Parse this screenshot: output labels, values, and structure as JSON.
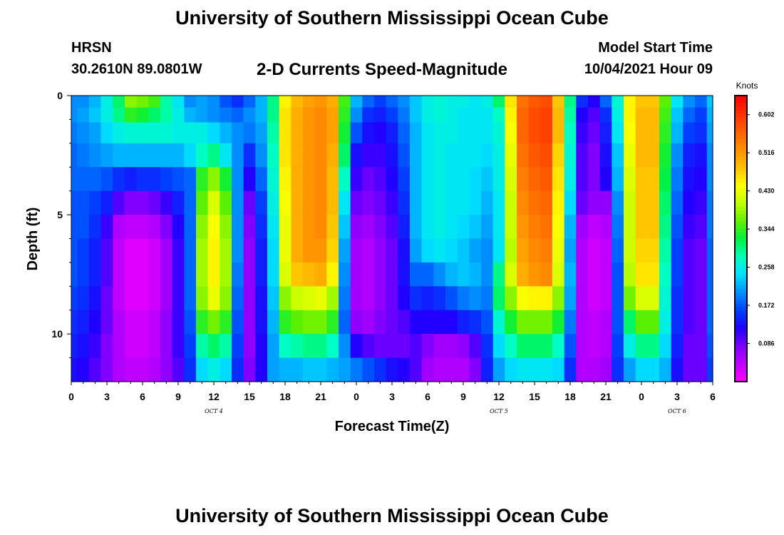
{
  "header": {
    "main_title": "University of Southern Mississippi Ocean Cube",
    "station": "HRSN",
    "coordinates": "30.2610N  89.0801W",
    "chart_title": "2-D Currents Speed-Magnitude",
    "model_start_label": "Model Start Time",
    "model_start_time": "10/04/2021 Hour 09"
  },
  "footer": {
    "title": "University of Southern Mississippi Ocean Cube"
  },
  "chart_data": {
    "type": "heatmap",
    "title": "2-D Currents Speed-Magnitude",
    "xlabel": "Forecast Time(Z)",
    "ylabel": "Depth (ft)",
    "x_hours": [
      0,
      3,
      6,
      9,
      12,
      15,
      18,
      21,
      24,
      27,
      30,
      33,
      36,
      39,
      42,
      45,
      48,
      51,
      54
    ],
    "x_tick_labels": [
      "0",
      "3",
      "6",
      "9",
      "12",
      "15",
      "18",
      "21",
      "0",
      "3",
      "6",
      "9",
      "12",
      "15",
      "18",
      "21",
      "0",
      "3",
      "6"
    ],
    "day_labels": [
      {
        "label": "OCT 4",
        "hour": 12
      },
      {
        "label": "OCT 5",
        "hour": 36
      },
      {
        "label": "OCT 6",
        "hour": 51
      }
    ],
    "y_ticks": [
      0,
      5,
      10
    ],
    "ylim": [
      0,
      12
    ],
    "colorbar": {
      "label": "Knots",
      "min": 0.0,
      "max": 0.645,
      "ticks": [
        "0.086",
        "0.172",
        "0.258",
        "0.344",
        "0.430",
        "0.516",
        "0.602"
      ],
      "colors": [
        "#ff00ff",
        "#c000ff",
        "#8000ff",
        "#2000ff",
        "#0040ff",
        "#0090ff",
        "#00e0ff",
        "#00ffc0",
        "#00f040",
        "#60f000",
        "#c0ff00",
        "#ffff00",
        "#ffc000",
        "#ff9000",
        "#ff6000",
        "#ff3000",
        "#ff0000"
      ]
    },
    "depth_bins_ft": [
      0.25,
      0.75,
      1.5,
      2.5,
      3.5,
      4.5,
      5.5,
      6.5,
      7.5,
      8.5,
      9.5,
      10.5,
      11.5
    ],
    "hours": [
      0,
      1,
      2,
      3,
      4,
      5,
      6,
      7,
      8,
      9,
      10,
      11,
      12,
      13,
      14,
      15,
      16,
      17,
      18,
      19,
      20,
      21,
      22,
      23,
      24,
      25,
      26,
      27,
      28,
      29,
      30,
      31,
      32,
      33,
      34,
      35,
      36,
      37,
      38,
      39,
      40,
      41,
      42,
      43,
      44,
      45,
      46,
      47,
      48,
      49,
      50,
      51,
      52,
      53,
      54
    ],
    "speed_knots": [
      [
        0.2,
        0.2,
        0.22,
        0.26,
        0.31,
        0.38,
        0.37,
        0.35,
        0.29,
        0.25,
        0.2,
        0.21,
        0.2,
        0.17,
        0.15,
        0.18,
        0.22,
        0.3,
        0.45,
        0.49,
        0.51,
        0.52,
        0.5,
        0.35,
        0.22,
        0.18,
        0.16,
        0.18,
        0.2,
        0.23,
        0.26,
        0.27,
        0.26,
        0.26,
        0.25,
        0.26,
        0.31,
        0.46,
        0.55,
        0.57,
        0.58,
        0.48,
        0.3,
        0.15,
        0.12,
        0.18,
        0.27,
        0.45,
        0.48,
        0.48,
        0.36,
        0.25,
        0.2,
        0.18,
        0.23
      ],
      [
        0.2,
        0.21,
        0.23,
        0.26,
        0.3,
        0.34,
        0.33,
        0.31,
        0.29,
        0.26,
        0.22,
        0.21,
        0.2,
        0.19,
        0.18,
        0.2,
        0.22,
        0.3,
        0.46,
        0.5,
        0.52,
        0.53,
        0.51,
        0.34,
        0.2,
        0.15,
        0.14,
        0.16,
        0.19,
        0.23,
        0.26,
        0.27,
        0.26,
        0.25,
        0.25,
        0.25,
        0.28,
        0.45,
        0.56,
        0.58,
        0.59,
        0.49,
        0.29,
        0.12,
        0.1,
        0.15,
        0.26,
        0.45,
        0.49,
        0.49,
        0.35,
        0.23,
        0.18,
        0.16,
        0.22
      ],
      [
        0.19,
        0.2,
        0.21,
        0.24,
        0.26,
        0.27,
        0.27,
        0.27,
        0.27,
        0.26,
        0.26,
        0.26,
        0.24,
        0.22,
        0.2,
        0.19,
        0.21,
        0.29,
        0.46,
        0.5,
        0.52,
        0.53,
        0.51,
        0.33,
        0.17,
        0.13,
        0.12,
        0.14,
        0.18,
        0.22,
        0.25,
        0.26,
        0.26,
        0.25,
        0.25,
        0.25,
        0.27,
        0.44,
        0.56,
        0.58,
        0.59,
        0.49,
        0.28,
        0.11,
        0.09,
        0.14,
        0.25,
        0.44,
        0.49,
        0.49,
        0.34,
        0.22,
        0.16,
        0.15,
        0.21
      ],
      [
        0.18,
        0.19,
        0.2,
        0.21,
        0.22,
        0.22,
        0.22,
        0.22,
        0.22,
        0.22,
        0.24,
        0.28,
        0.3,
        0.25,
        0.2,
        0.15,
        0.2,
        0.28,
        0.46,
        0.5,
        0.52,
        0.53,
        0.5,
        0.31,
        0.13,
        0.11,
        0.11,
        0.13,
        0.17,
        0.22,
        0.25,
        0.26,
        0.25,
        0.25,
        0.25,
        0.24,
        0.26,
        0.43,
        0.55,
        0.57,
        0.58,
        0.47,
        0.27,
        0.1,
        0.08,
        0.13,
        0.23,
        0.43,
        0.49,
        0.49,
        0.33,
        0.2,
        0.14,
        0.13,
        0.2
      ],
      [
        0.18,
        0.18,
        0.18,
        0.17,
        0.15,
        0.14,
        0.15,
        0.15,
        0.16,
        0.17,
        0.18,
        0.34,
        0.38,
        0.33,
        0.2,
        0.12,
        0.18,
        0.27,
        0.45,
        0.5,
        0.52,
        0.53,
        0.49,
        0.28,
        0.11,
        0.09,
        0.1,
        0.12,
        0.16,
        0.22,
        0.25,
        0.26,
        0.25,
        0.25,
        0.24,
        0.23,
        0.26,
        0.42,
        0.54,
        0.56,
        0.57,
        0.46,
        0.26,
        0.1,
        0.08,
        0.12,
        0.22,
        0.42,
        0.48,
        0.48,
        0.32,
        0.19,
        0.13,
        0.12,
        0.2
      ],
      [
        0.17,
        0.17,
        0.16,
        0.14,
        0.1,
        0.08,
        0.08,
        0.09,
        0.11,
        0.14,
        0.18,
        0.36,
        0.42,
        0.36,
        0.2,
        0.09,
        0.16,
        0.26,
        0.44,
        0.5,
        0.52,
        0.53,
        0.49,
        0.25,
        0.09,
        0.08,
        0.09,
        0.11,
        0.15,
        0.22,
        0.25,
        0.26,
        0.25,
        0.25,
        0.24,
        0.22,
        0.25,
        0.41,
        0.53,
        0.55,
        0.56,
        0.45,
        0.24,
        0.09,
        0.07,
        0.07,
        0.2,
        0.41,
        0.48,
        0.48,
        0.31,
        0.18,
        0.12,
        0.11,
        0.19
      ],
      [
        0.17,
        0.17,
        0.15,
        0.11,
        0.05,
        0.04,
        0.04,
        0.05,
        0.08,
        0.12,
        0.18,
        0.38,
        0.44,
        0.38,
        0.2,
        0.08,
        0.15,
        0.25,
        0.43,
        0.5,
        0.52,
        0.53,
        0.48,
        0.23,
        0.07,
        0.06,
        0.08,
        0.1,
        0.14,
        0.22,
        0.25,
        0.26,
        0.25,
        0.24,
        0.23,
        0.21,
        0.25,
        0.41,
        0.52,
        0.54,
        0.55,
        0.44,
        0.22,
        0.06,
        0.04,
        0.05,
        0.19,
        0.41,
        0.48,
        0.48,
        0.3,
        0.17,
        0.11,
        0.1,
        0.19
      ],
      [
        0.17,
        0.16,
        0.14,
        0.1,
        0.04,
        0.02,
        0.02,
        0.03,
        0.06,
        0.11,
        0.18,
        0.39,
        0.45,
        0.39,
        0.2,
        0.07,
        0.14,
        0.24,
        0.43,
        0.5,
        0.52,
        0.52,
        0.47,
        0.21,
        0.06,
        0.05,
        0.07,
        0.09,
        0.13,
        0.21,
        0.24,
        0.25,
        0.24,
        0.23,
        0.21,
        0.2,
        0.25,
        0.4,
        0.51,
        0.53,
        0.54,
        0.43,
        0.21,
        0.05,
        0.03,
        0.04,
        0.18,
        0.41,
        0.47,
        0.47,
        0.29,
        0.16,
        0.1,
        0.09,
        0.18
      ],
      [
        0.17,
        0.16,
        0.14,
        0.1,
        0.04,
        0.02,
        0.02,
        0.03,
        0.06,
        0.11,
        0.18,
        0.39,
        0.45,
        0.39,
        0.19,
        0.07,
        0.14,
        0.24,
        0.42,
        0.48,
        0.49,
        0.5,
        0.45,
        0.2,
        0.06,
        0.05,
        0.07,
        0.09,
        0.13,
        0.18,
        0.18,
        0.2,
        0.22,
        0.23,
        0.22,
        0.2,
        0.3,
        0.42,
        0.5,
        0.52,
        0.53,
        0.42,
        0.22,
        0.05,
        0.03,
        0.04,
        0.17,
        0.4,
        0.46,
        0.46,
        0.28,
        0.16,
        0.1,
        0.09,
        0.18
      ],
      [
        0.16,
        0.15,
        0.13,
        0.09,
        0.04,
        0.02,
        0.02,
        0.03,
        0.06,
        0.11,
        0.18,
        0.38,
        0.43,
        0.38,
        0.18,
        0.07,
        0.13,
        0.23,
        0.38,
        0.41,
        0.42,
        0.43,
        0.39,
        0.19,
        0.06,
        0.05,
        0.07,
        0.09,
        0.12,
        0.15,
        0.14,
        0.15,
        0.17,
        0.19,
        0.2,
        0.19,
        0.31,
        0.38,
        0.44,
        0.45,
        0.45,
        0.38,
        0.21,
        0.05,
        0.03,
        0.04,
        0.17,
        0.37,
        0.42,
        0.42,
        0.27,
        0.15,
        0.1,
        0.09,
        0.18
      ],
      [
        0.15,
        0.14,
        0.12,
        0.09,
        0.05,
        0.03,
        0.03,
        0.04,
        0.07,
        0.11,
        0.17,
        0.34,
        0.37,
        0.34,
        0.17,
        0.07,
        0.13,
        0.22,
        0.34,
        0.36,
        0.37,
        0.37,
        0.34,
        0.18,
        0.07,
        0.06,
        0.08,
        0.09,
        0.1,
        0.12,
        0.12,
        0.12,
        0.12,
        0.14,
        0.15,
        0.17,
        0.27,
        0.33,
        0.37,
        0.37,
        0.37,
        0.33,
        0.19,
        0.05,
        0.04,
        0.05,
        0.17,
        0.31,
        0.36,
        0.36,
        0.26,
        0.15,
        0.1,
        0.09,
        0.18
      ],
      [
        0.14,
        0.13,
        0.11,
        0.08,
        0.05,
        0.03,
        0.03,
        0.04,
        0.07,
        0.11,
        0.16,
        0.29,
        0.31,
        0.29,
        0.16,
        0.07,
        0.12,
        0.21,
        0.28,
        0.29,
        0.3,
        0.3,
        0.28,
        0.2,
        0.12,
        0.1,
        0.09,
        0.09,
        0.09,
        0.1,
        0.08,
        0.06,
        0.06,
        0.07,
        0.1,
        0.15,
        0.24,
        0.28,
        0.31,
        0.31,
        0.31,
        0.28,
        0.17,
        0.05,
        0.04,
        0.05,
        0.16,
        0.26,
        0.3,
        0.3,
        0.24,
        0.14,
        0.09,
        0.09,
        0.17
      ],
      [
        0.13,
        0.12,
        0.1,
        0.08,
        0.05,
        0.04,
        0.04,
        0.05,
        0.07,
        0.1,
        0.15,
        0.24,
        0.26,
        0.24,
        0.15,
        0.08,
        0.12,
        0.21,
        0.22,
        0.22,
        0.23,
        0.23,
        0.22,
        0.21,
        0.19,
        0.17,
        0.15,
        0.13,
        0.12,
        0.1,
        0.06,
        0.05,
        0.05,
        0.05,
        0.08,
        0.14,
        0.21,
        0.24,
        0.25,
        0.25,
        0.25,
        0.24,
        0.15,
        0.05,
        0.05,
        0.06,
        0.15,
        0.21,
        0.24,
        0.24,
        0.22,
        0.13,
        0.09,
        0.09,
        0.16
      ]
    ]
  }
}
